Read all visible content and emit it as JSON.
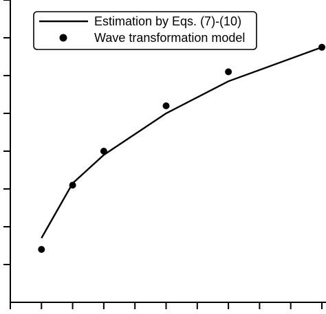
{
  "chart_data": {
    "type": "line",
    "x": [
      1,
      2,
      3,
      5,
      7,
      10
    ],
    "series": [
      {
        "name": "Estimation by Eqs. (7)-(10)",
        "kind": "line",
        "x": [
          1,
          2,
          3,
          5,
          7,
          10
        ],
        "values": [
          0.17,
          0.315,
          0.39,
          0.5,
          0.585,
          0.675
        ]
      },
      {
        "name": "Wave transformation model",
        "kind": "scatter",
        "x": [
          1,
          2,
          3,
          5,
          7,
          10
        ],
        "values": [
          0.14,
          0.31,
          0.4,
          0.52,
          0.61,
          0.675
        ]
      }
    ],
    "xlim": [
      0,
      10.2
    ],
    "ylim": [
      0,
      0.8
    ],
    "x_ticks": [
      0,
      1,
      2,
      3,
      4,
      5,
      6,
      7,
      8,
      9,
      10
    ],
    "y_ticks": [
      0.1,
      0.2,
      0.3,
      0.4,
      0.5,
      0.6,
      0.7,
      0.8
    ],
    "legend": {
      "position": "top-left",
      "items": [
        {
          "label": "Estimation by Eqs. (7)-(10)",
          "symbol": "line"
        },
        {
          "label": "Wave transformation model",
          "symbol": "marker"
        }
      ]
    },
    "colors": {
      "line": "#000000",
      "marker": "#000000"
    },
    "grid": false
  }
}
